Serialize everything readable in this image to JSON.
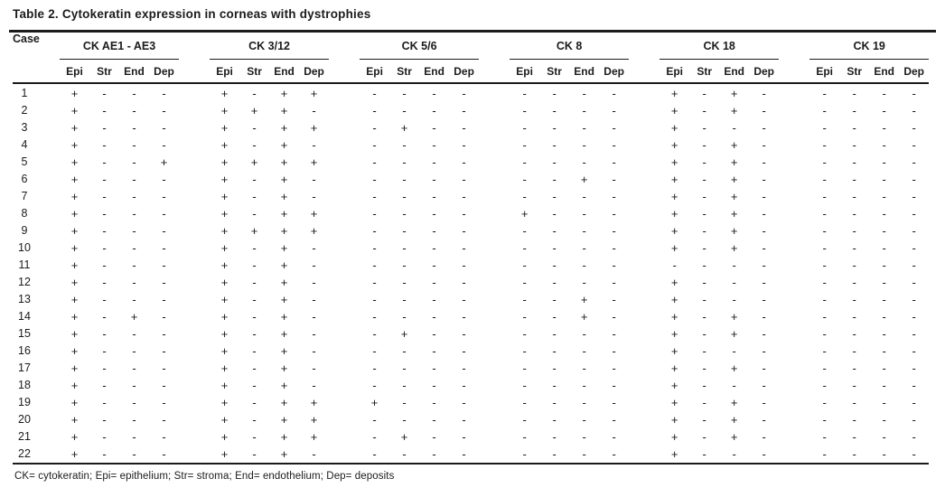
{
  "table": {
    "title": "Table 2. Cytokeratin expression in corneas with dystrophies",
    "case_header": "Case",
    "groups": [
      {
        "label": "CK AE1 - AE3"
      },
      {
        "label": "CK 3/12"
      },
      {
        "label": "CK 5/6"
      },
      {
        "label": "CK 8"
      },
      {
        "label": "CK 18"
      },
      {
        "label": "CK 19"
      }
    ],
    "subheaders": [
      "Epi",
      "Str",
      "End",
      "Dep"
    ],
    "rows": [
      {
        "case": "1",
        "values": [
          "+",
          "-",
          "-",
          "-",
          "+",
          "-",
          "+",
          "+",
          "-",
          "-",
          "-",
          "-",
          "-",
          "-",
          "-",
          "-",
          "+",
          "-",
          "+",
          "-",
          "-",
          "-",
          "-",
          "-"
        ]
      },
      {
        "case": "2",
        "values": [
          "+",
          "-",
          "-",
          "-",
          "+",
          "+",
          "+",
          "-",
          "-",
          "-",
          "-",
          "-",
          "-",
          "-",
          "-",
          "-",
          "+",
          "-",
          "+",
          "-",
          "-",
          "-",
          "-",
          "-"
        ]
      },
      {
        "case": "3",
        "values": [
          "+",
          "-",
          "-",
          "-",
          "+",
          "-",
          "+",
          "+",
          "-",
          "+",
          "-",
          "-",
          "-",
          "-",
          "-",
          "-",
          "+",
          "-",
          "-",
          "-",
          "-",
          "-",
          "-",
          "-"
        ]
      },
      {
        "case": "4",
        "values": [
          "+",
          "-",
          "-",
          "-",
          "+",
          "-",
          "+",
          "-",
          "-",
          "-",
          "-",
          "-",
          "-",
          "-",
          "-",
          "-",
          "+",
          "-",
          "+",
          "-",
          "-",
          "-",
          "-",
          "-"
        ]
      },
      {
        "case": "5",
        "values": [
          "+",
          "-",
          "-",
          "+",
          "+",
          "+",
          "+",
          "+",
          "-",
          "-",
          "-",
          "-",
          "-",
          "-",
          "-",
          "-",
          "+",
          "-",
          "+",
          "-",
          "-",
          "-",
          "-",
          "-"
        ]
      },
      {
        "case": "6",
        "values": [
          "+",
          "-",
          "-",
          "-",
          "+",
          "-",
          "+",
          "-",
          "-",
          "-",
          "-",
          "-",
          "-",
          "-",
          "+",
          "-",
          "+",
          "-",
          "+",
          "-",
          "-",
          "-",
          "-",
          "-"
        ]
      },
      {
        "case": "7",
        "values": [
          "+",
          "-",
          "-",
          "-",
          "+",
          "-",
          "+",
          "-",
          "-",
          "-",
          "-",
          "-",
          "-",
          "-",
          "-",
          "-",
          "+",
          "-",
          "+",
          "-",
          "-",
          "-",
          "-",
          "-"
        ]
      },
      {
        "case": "8",
        "values": [
          "+",
          "-",
          "-",
          "-",
          "+",
          "-",
          "+",
          "+",
          "-",
          "-",
          "-",
          "-",
          "+",
          "-",
          "-",
          "-",
          "+",
          "-",
          "+",
          "-",
          "-",
          "-",
          "-",
          "-"
        ]
      },
      {
        "case": "9",
        "values": [
          "+",
          "-",
          "-",
          "-",
          "+",
          "+",
          "+",
          "+",
          "-",
          "-",
          "-",
          "-",
          "-",
          "-",
          "-",
          "-",
          "+",
          "-",
          "+",
          "-",
          "-",
          "-",
          "-",
          "-"
        ]
      },
      {
        "case": "10",
        "values": [
          "+",
          "-",
          "-",
          "-",
          "+",
          "-",
          "+",
          "-",
          "-",
          "-",
          "-",
          "-",
          "-",
          "-",
          "-",
          "-",
          "+",
          "-",
          "+",
          "-",
          "-",
          "-",
          "-",
          "-"
        ]
      },
      {
        "case": "11",
        "values": [
          "+",
          "-",
          "-",
          "-",
          "+",
          "-",
          "+",
          "-",
          "-",
          "-",
          "-",
          "-",
          "-",
          "-",
          "-",
          "-",
          "-",
          "-",
          "-",
          "-",
          "-",
          "-",
          "-",
          "-"
        ]
      },
      {
        "case": "12",
        "values": [
          "+",
          "-",
          "-",
          "-",
          "+",
          "-",
          "+",
          "-",
          "-",
          "-",
          "-",
          "-",
          "-",
          "-",
          "-",
          "-",
          "+",
          "-",
          "-",
          "-",
          "-",
          "-",
          "-",
          "-"
        ]
      },
      {
        "case": "13",
        "values": [
          "+",
          "-",
          "-",
          "-",
          "+",
          "-",
          "+",
          "-",
          "-",
          "-",
          "-",
          "-",
          "-",
          "-",
          "+",
          "-",
          "+",
          "-",
          "-",
          "-",
          "-",
          "-",
          "-",
          "-"
        ]
      },
      {
        "case": "14",
        "values": [
          "+",
          "-",
          "+",
          "-",
          "+",
          "-",
          "+",
          "-",
          "-",
          "-",
          "-",
          "-",
          "-",
          "-",
          "+",
          "-",
          "+",
          "-",
          "+",
          "-",
          "-",
          "-",
          "-",
          "-"
        ]
      },
      {
        "case": "15",
        "values": [
          "+",
          "-",
          "-",
          "-",
          "+",
          "-",
          "+",
          "-",
          "-",
          "+",
          "-",
          "-",
          "-",
          "-",
          "-",
          "-",
          "+",
          "-",
          "+",
          "-",
          "-",
          "-",
          "-",
          "-"
        ]
      },
      {
        "case": "16",
        "values": [
          "+",
          "-",
          "-",
          "-",
          "+",
          "-",
          "+",
          "-",
          "-",
          "-",
          "-",
          "-",
          "-",
          "-",
          "-",
          "-",
          "+",
          "-",
          "-",
          "-",
          "-",
          "-",
          "-",
          "-"
        ]
      },
      {
        "case": "17",
        "values": [
          "+",
          "-",
          "-",
          "-",
          "+",
          "-",
          "+",
          "-",
          "-",
          "-",
          "-",
          "-",
          "-",
          "-",
          "-",
          "-",
          "+",
          "-",
          "+",
          "-",
          "-",
          "-",
          "-",
          "-"
        ]
      },
      {
        "case": "18",
        "values": [
          "+",
          "-",
          "-",
          "-",
          "+",
          "-",
          "+",
          "-",
          "-",
          "-",
          "-",
          "-",
          "-",
          "-",
          "-",
          "-",
          "+",
          "-",
          "-",
          "-",
          "-",
          "-",
          "-",
          "-"
        ]
      },
      {
        "case": "19",
        "values": [
          "+",
          "-",
          "-",
          "-",
          "+",
          "-",
          "+",
          "+",
          "+",
          "-",
          "-",
          "-",
          "-",
          "-",
          "-",
          "-",
          "+",
          "-",
          "+",
          "-",
          "-",
          "-",
          "-",
          "-"
        ]
      },
      {
        "case": "20",
        "values": [
          "+",
          "-",
          "-",
          "-",
          "+",
          "-",
          "+",
          "+",
          "-",
          "-",
          "-",
          "-",
          "-",
          "-",
          "-",
          "-",
          "+",
          "-",
          "+",
          "-",
          "-",
          "-",
          "-",
          "-"
        ]
      },
      {
        "case": "21",
        "values": [
          "+",
          "-",
          "-",
          "-",
          "+",
          "-",
          "+",
          "+",
          "-",
          "+",
          "-",
          "-",
          "-",
          "-",
          "-",
          "-",
          "+",
          "-",
          "+",
          "-",
          "-",
          "-",
          "-",
          "-"
        ]
      },
      {
        "case": "22",
        "values": [
          "+",
          "-",
          "-",
          "-",
          "+",
          "-",
          "+",
          "-",
          "-",
          "-",
          "-",
          "-",
          "-",
          "-",
          "-",
          "-",
          "+",
          "-",
          "-",
          "-",
          "-",
          "-",
          "-",
          "-"
        ]
      }
    ],
    "footnote": "CK= cytokeratin; Epi= epithelium; Str= stroma; End= endothelium; Dep= deposits"
  }
}
